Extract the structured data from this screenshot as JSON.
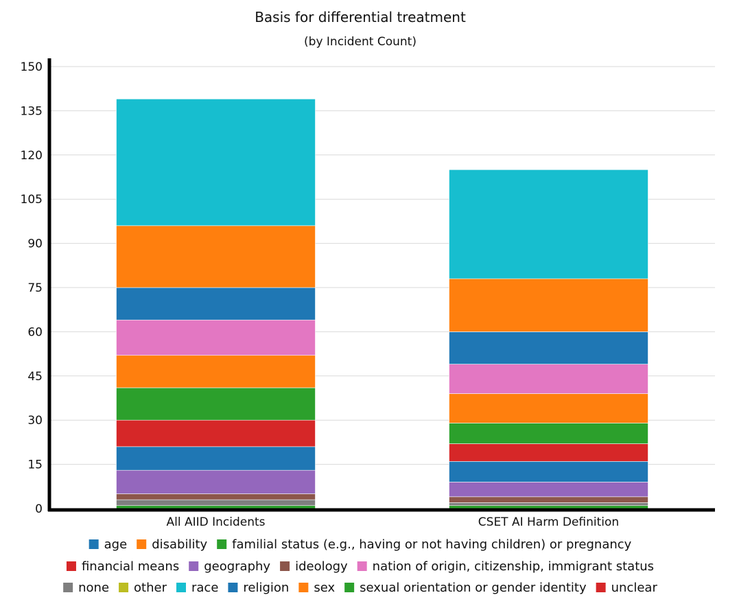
{
  "chart_data": {
    "type": "bar",
    "stacked": true,
    "title": "Basis for differential treatment",
    "subtitle": "(by Incident Count)",
    "xlabel": "",
    "ylabel": "",
    "ylim": [
      0,
      150
    ],
    "y_ticks": [
      "0",
      "15",
      "30",
      "45",
      "60",
      "75",
      "90",
      "105",
      "120",
      "135",
      "150"
    ],
    "grid": true,
    "legend_position": "bottom",
    "categories": [
      "All AIID Incidents",
      "CSET AI Harm Definition"
    ],
    "series": [
      {
        "name": "unclear",
        "color": "#d62728",
        "values": [
          0,
          0
        ]
      },
      {
        "name": "sexual orientation or gender identity",
        "color": "#2ca02c",
        "values": [
          1,
          1
        ]
      },
      {
        "name": "sex",
        "color": "#ff7f0e",
        "values": [
          0,
          0
        ]
      },
      {
        "name": "religion",
        "color": "#1f77b4",
        "values": [
          0,
          0
        ]
      },
      {
        "name": "race",
        "color": "#17becf",
        "values": [
          0,
          0
        ]
      },
      {
        "name": "other",
        "color": "#bcbd22",
        "values": [
          0,
          0
        ]
      },
      {
        "name": "none",
        "color": "#7f7f7f",
        "values": [
          2,
          1
        ]
      },
      {
        "name": "nation of origin, citizenship, immigrant status",
        "color": "#e377c2",
        "values": [
          0,
          0
        ]
      },
      {
        "name": "ideology",
        "color": "#8c564b",
        "values": [
          2,
          2
        ]
      },
      {
        "name": "geography",
        "color": "#9467bd",
        "values": [
          8,
          5
        ]
      },
      {
        "name": "financial means",
        "color": "#d62728",
        "values": [
          0,
          0
        ]
      },
      {
        "name": "familial status (e.g., having or not having children) or pregnancy",
        "color": "#2ca02c",
        "values": [
          0,
          0
        ]
      },
      {
        "name": "disability",
        "color": "#ff7f0e",
        "values": [
          0,
          0
        ]
      },
      {
        "name": "age",
        "color": "#1f77b4",
        "values": [
          8,
          7
        ]
      },
      {
        "name": "financial means",
        "color": "#d62728",
        "values": [
          9,
          6
        ]
      },
      {
        "name": "familial status (e.g., having or not having children) or pregnancy",
        "color": "#2ca02c",
        "values": [
          11,
          7
        ]
      },
      {
        "name": "disability",
        "color": "#ff7f0e",
        "values": [
          11,
          10
        ]
      },
      {
        "name": "nation of origin, citizenship, immigrant status",
        "color": "#e377c2",
        "values": [
          12,
          10
        ]
      },
      {
        "name": "religion",
        "color": "#1f77b4",
        "values": [
          11,
          11
        ]
      },
      {
        "name": "sex",
        "color": "#ff7f0e",
        "values": [
          21,
          18
        ]
      },
      {
        "name": "race",
        "color": "#17becf",
        "values": [
          43,
          37
        ]
      }
    ],
    "legend": [
      {
        "name": "age",
        "color": "#1f77b4"
      },
      {
        "name": "disability",
        "color": "#ff7f0e"
      },
      {
        "name": "familial status (e.g., having or not having children) or pregnancy",
        "color": "#2ca02c"
      },
      {
        "name": "financial means",
        "color": "#d62728"
      },
      {
        "name": "geography",
        "color": "#9467bd"
      },
      {
        "name": "ideology",
        "color": "#8c564b"
      },
      {
        "name": "nation of origin, citizenship, immigrant status",
        "color": "#e377c2"
      },
      {
        "name": "none",
        "color": "#7f7f7f"
      },
      {
        "name": "other",
        "color": "#bcbd22"
      },
      {
        "name": "race",
        "color": "#17becf"
      },
      {
        "name": "religion",
        "color": "#1f77b4"
      },
      {
        "name": "sex",
        "color": "#ff7f0e"
      },
      {
        "name": "sexual orientation or gender identity",
        "color": "#2ca02c"
      },
      {
        "name": "unclear",
        "color": "#d62728"
      }
    ]
  }
}
